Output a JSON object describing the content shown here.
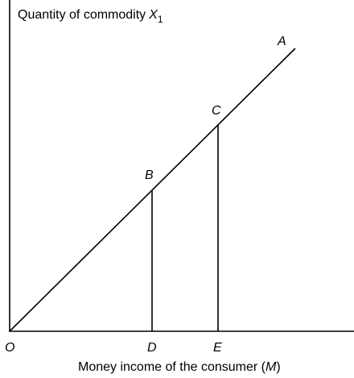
{
  "axes": {
    "y_label": {
      "text": "Quantity of commodity",
      "variable": "X",
      "subscript": "1"
    },
    "x_label": {
      "prefix": "Money income of the consumer (",
      "variable": "M",
      "suffix": ")"
    }
  },
  "points": {
    "A": "A",
    "B": "B",
    "C": "C",
    "D": "D",
    "E": "E",
    "O": "O"
  }
}
